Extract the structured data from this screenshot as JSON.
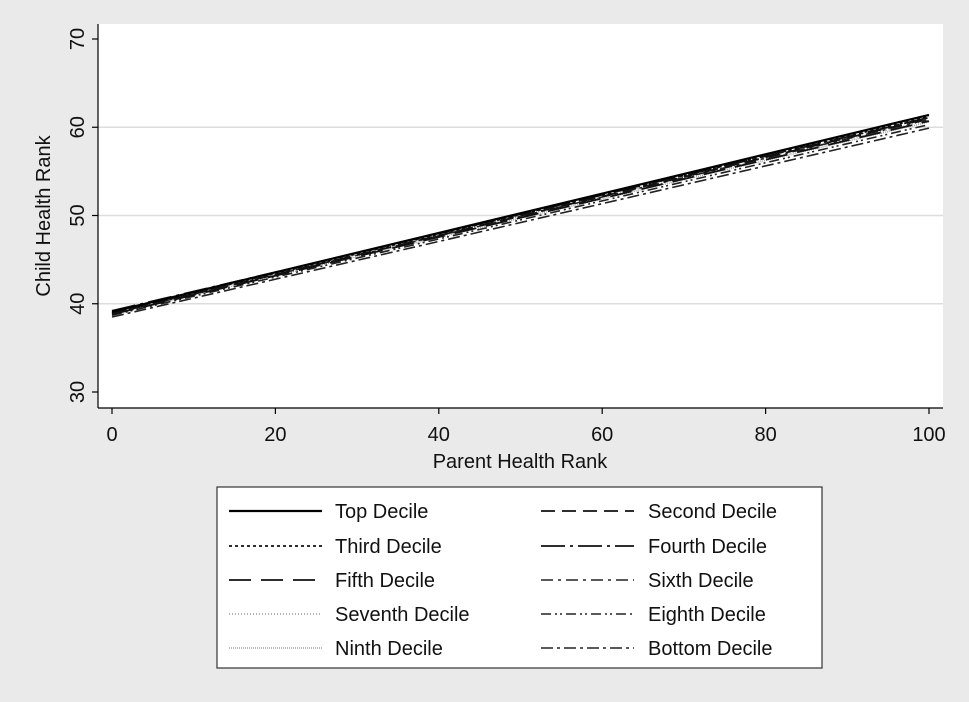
{
  "chart_data": {
    "type": "line",
    "xlabel": "Parent Health Rank",
    "ylabel": "Child Health Rank",
    "xlim": [
      0,
      100
    ],
    "ylim": [
      30,
      70
    ],
    "xticks": [
      0,
      20,
      40,
      60,
      80,
      100
    ],
    "yticks": [
      30,
      40,
      50,
      60,
      70
    ],
    "grid": "horizontal",
    "legend_position": "bottom",
    "x": [
      0,
      100
    ],
    "series": [
      {
        "name": "Top Decile",
        "values": [
          39.1,
          61.4
        ],
        "dash": "solid",
        "stroke_width": 2.2,
        "color": "#000000"
      },
      {
        "name": "Second Decile",
        "values": [
          38.9,
          61.0
        ],
        "dash": "14 7",
        "stroke_width": 1.8,
        "color": "#111111"
      },
      {
        "name": "Third Decile",
        "values": [
          39.0,
          61.2
        ],
        "dash": "3 3",
        "stroke_width": 1.8,
        "color": "#111111"
      },
      {
        "name": "Fourth Decile",
        "values": [
          39.2,
          61.1
        ],
        "dash": "24 5 3 5",
        "stroke_width": 1.8,
        "color": "#111111"
      },
      {
        "name": "Fifth Decile",
        "values": [
          38.8,
          60.7
        ],
        "dash": "22 10",
        "stroke_width": 1.8,
        "color": "#111111"
      },
      {
        "name": "Sixth Decile",
        "values": [
          38.9,
          60.9
        ],
        "dash": "12 5 3 5",
        "stroke_width": 1.6,
        "color": "#222222"
      },
      {
        "name": "Seventh Decile",
        "values": [
          39.0,
          60.8
        ],
        "dash": "1 2",
        "stroke_width": 1.4,
        "color": "#999999"
      },
      {
        "name": "Eighth Decile",
        "values": [
          38.7,
          60.3
        ],
        "dash": "10 4 2 3 2 4",
        "stroke_width": 1.6,
        "color": "#222222"
      },
      {
        "name": "Ninth Decile",
        "values": [
          38.8,
          60.6
        ],
        "dash": "1 1",
        "stroke_width": 1.4,
        "color": "#a0a0a0"
      },
      {
        "name": "Bottom Decile",
        "values": [
          38.5,
          59.9
        ],
        "dash": "12 4 3 4",
        "stroke_width": 1.6,
        "color": "#222222"
      }
    ]
  }
}
